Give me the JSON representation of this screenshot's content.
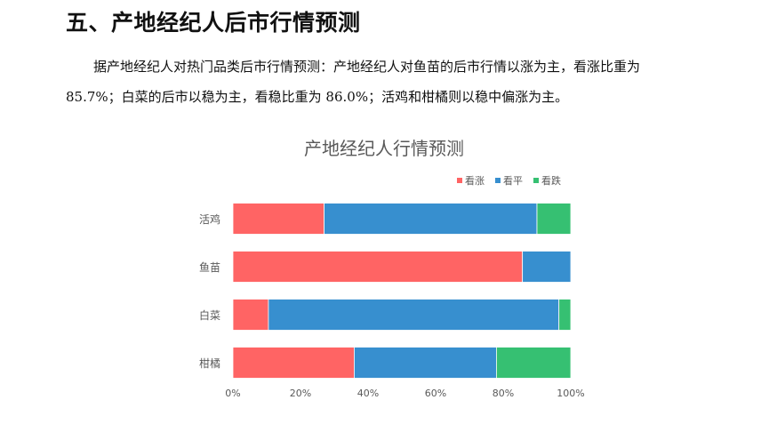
{
  "heading": "五、产地经纪人后市行情预测",
  "paragraph": "据产地经纪人对热门品类后市行情预测：产地经纪人对鱼苗的后市行情以涨为主，看涨比重为 85.7%；白菜的后市以稳为主，看稳比重为 86.0%；活鸡和柑橘则以稳中偏涨为主。",
  "chart_data": {
    "type": "bar",
    "orientation": "horizontal",
    "stacked": true,
    "percent": true,
    "title": "产地经纪人行情预测",
    "categories": [
      "活鸡",
      "鱼苗",
      "白菜",
      "柑橘"
    ],
    "series": [
      {
        "name": "看涨",
        "color": "#ff6464",
        "values": [
          27.0,
          85.7,
          10.5,
          35.9
        ]
      },
      {
        "name": "看平",
        "color": "#378fcf",
        "values": [
          63.0,
          14.3,
          86.0,
          42.1
        ]
      },
      {
        "name": "看跌",
        "color": "#36c072",
        "values": [
          10.0,
          0.0,
          3.5,
          22.0
        ]
      }
    ],
    "xlim": [
      0,
      100
    ],
    "xticks": [
      "0%",
      "20%",
      "40%",
      "60%",
      "80%",
      "100%"
    ],
    "legend_position": "top-right",
    "grid": false
  }
}
